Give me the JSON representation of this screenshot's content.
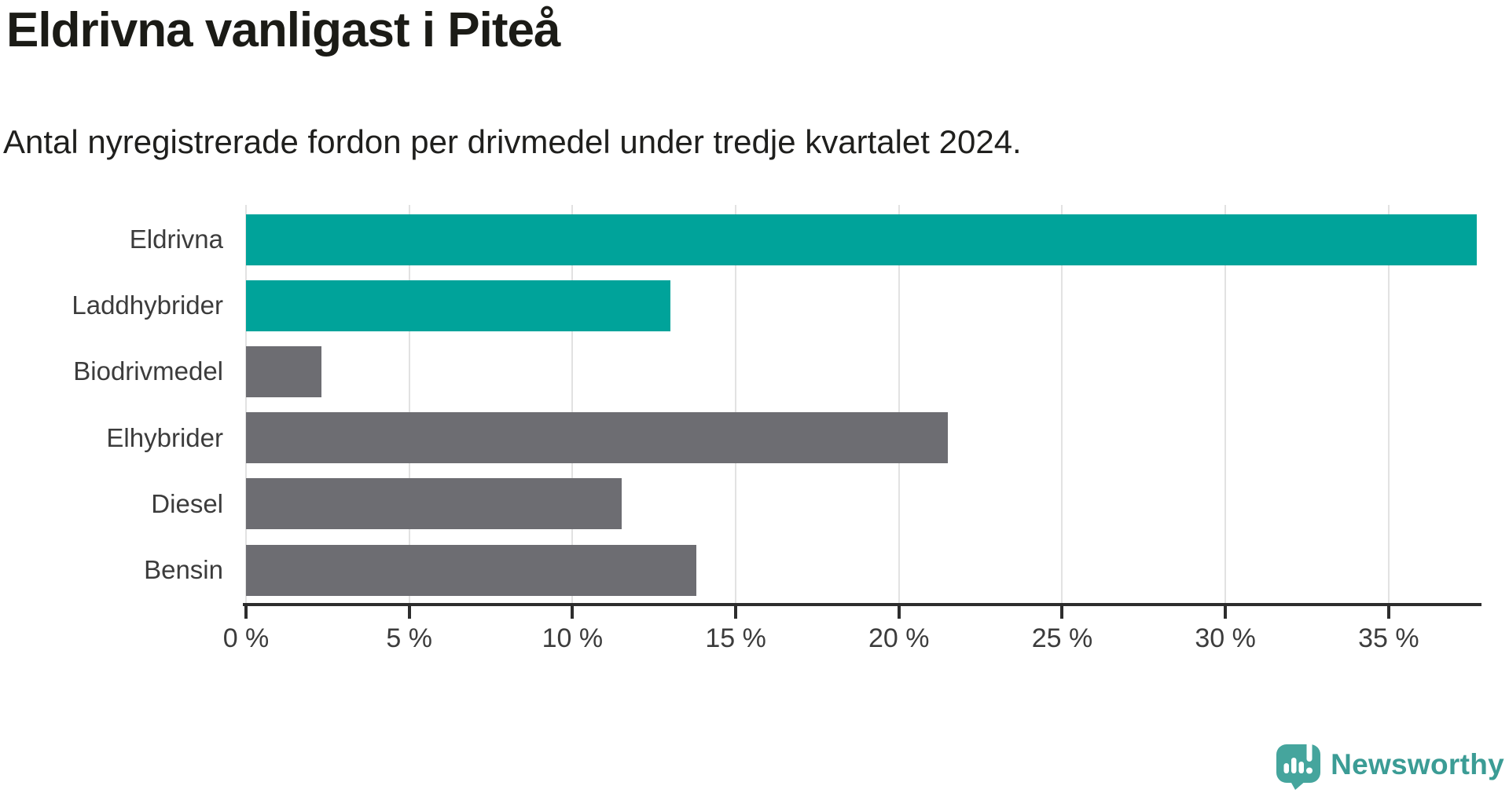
{
  "title": "Eldrivna vanligast i Piteå",
  "subtitle": "Antal nyregistrerade fordon per drivmedel under tredje kvartalet 2024.",
  "footer": {
    "brand": "Newsworthy"
  },
  "colors": {
    "highlight": "#00a39a",
    "muted": "#6d6d72",
    "axis": "#2d2d2d",
    "grid": "#e2e2e2",
    "text": "#3c3c3c",
    "title_text": "#1b1b16",
    "logo_teal": "#45a59d",
    "logo_text_teal": "#3b9c95"
  },
  "chart_data": {
    "type": "bar",
    "orientation": "horizontal",
    "title": "Eldrivna vanligast i Piteå",
    "subtitle": "Antal nyregistrerade fordon per drivmedel under tredje kvartalet 2024.",
    "categories": [
      "Eldrivna",
      "Laddhybrider",
      "Biodrivmedel",
      "Elhybrider",
      "Diesel",
      "Bensin"
    ],
    "values": [
      37.7,
      13.0,
      2.3,
      21.5,
      11.5,
      13.8
    ],
    "unit": "%",
    "bar_colors": [
      "#00a39a",
      "#00a39a",
      "#6d6d72",
      "#6d6d72",
      "#6d6d72",
      "#6d6d72"
    ],
    "xlabel": "",
    "ylabel": "",
    "xlim": [
      0,
      37.7
    ],
    "xticks": [
      0,
      5,
      10,
      15,
      20,
      25,
      30,
      35
    ],
    "x_tick_labels": [
      "0 %",
      "5 %",
      "10 %",
      "15 %",
      "20 %",
      "25 %",
      "30 %",
      "35 %"
    ],
    "grid": "vertical",
    "legend": "none"
  }
}
